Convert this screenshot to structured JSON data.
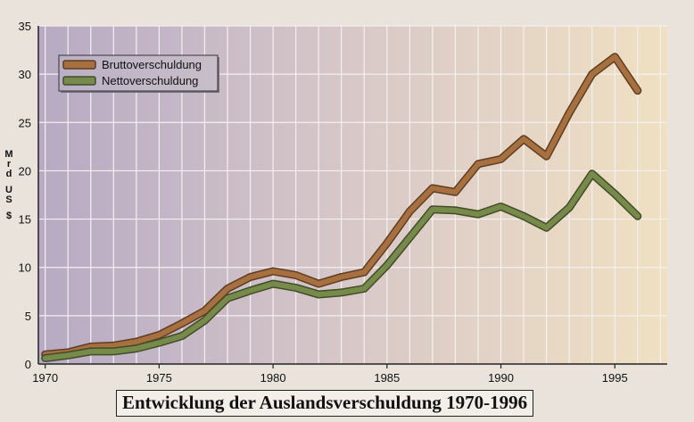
{
  "chart_data": {
    "type": "line",
    "title": "Entwicklung der Auslandsverschuldung 1970-1996",
    "ylabel": "Mrd US $",
    "xlim": [
      1969.7,
      1997.3
    ],
    "ylim": [
      0,
      35
    ],
    "yticks": [
      0,
      5,
      10,
      15,
      20,
      25,
      30,
      35
    ],
    "xticks": [
      1970,
      1975,
      1980,
      1985,
      1990,
      1995
    ],
    "grid": true,
    "legend_position": "top-left",
    "series": [
      {
        "name": "Bruttoverschuldung",
        "color": "#a8703f",
        "x": [
          1970,
          1971,
          1972,
          1973,
          1974,
          1975,
          1976,
          1977,
          1978,
          1979,
          1980,
          1981,
          1982,
          1983,
          1984,
          1985,
          1986,
          1987,
          1988,
          1989,
          1990,
          1991,
          1992,
          1993,
          1994,
          1995,
          1996
        ],
        "values": [
          1.0,
          1.2,
          1.8,
          1.9,
          2.3,
          3.0,
          4.2,
          5.5,
          7.8,
          9.0,
          9.6,
          9.2,
          8.3,
          9.0,
          9.5,
          12.5,
          15.8,
          18.2,
          17.8,
          20.7,
          21.2,
          23.3,
          21.5,
          26.0,
          30.0,
          31.8,
          28.3
        ]
      },
      {
        "name": "Nettoverschuldung",
        "color": "#768a4a",
        "x": [
          1970,
          1971,
          1972,
          1973,
          1974,
          1975,
          1976,
          1977,
          1978,
          1979,
          1980,
          1981,
          1982,
          1983,
          1984,
          1985,
          1986,
          1987,
          1988,
          1989,
          1990,
          1991,
          1992,
          1993,
          1994,
          1995,
          1996
        ],
        "values": [
          0.6,
          0.9,
          1.3,
          1.3,
          1.6,
          2.2,
          2.9,
          4.5,
          6.8,
          7.6,
          8.3,
          7.9,
          7.2,
          7.4,
          7.8,
          10.2,
          13.1,
          16.0,
          15.9,
          15.5,
          16.3,
          15.3,
          14.1,
          16.2,
          19.7,
          17.6,
          15.3
        ]
      }
    ]
  }
}
